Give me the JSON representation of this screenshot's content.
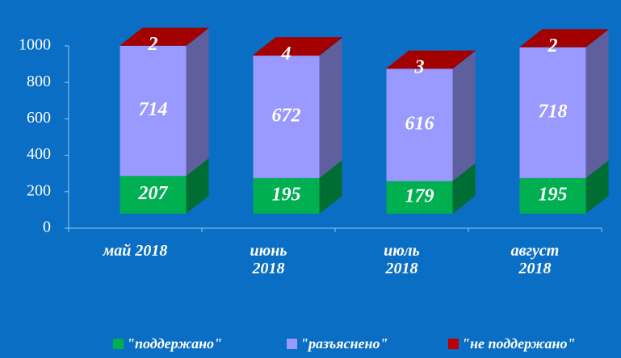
{
  "chart_data": {
    "type": "bar3d_stacked",
    "categories": [
      "май 2018",
      "июнь 2018",
      "июль 2018",
      "август 2018"
    ],
    "series": [
      {
        "name": "\"поддержано\"",
        "color": "#00b050",
        "values": [
          207,
          195,
          179,
          195
        ]
      },
      {
        "name": "\"разъяснено\"",
        "color": "#9999ff",
        "values": [
          714,
          672,
          616,
          718
        ]
      },
      {
        "name": "\"не поддержано\"",
        "color": "#c00000",
        "values": [
          2,
          4,
          3,
          2
        ]
      }
    ],
    "ylim": [
      0,
      1000
    ],
    "yticks": [
      0,
      200,
      400,
      600,
      800,
      1000
    ]
  }
}
